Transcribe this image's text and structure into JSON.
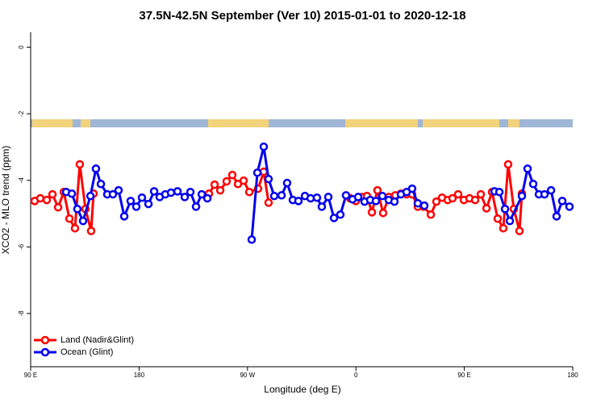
{
  "chart_data": {
    "type": "line",
    "title": "37.5N-42.5N September (Ver 10)   2015-01-01 to 2020-12-18",
    "x_label": "Longitude (deg E)",
    "y_label": "XCO2 - MLO trend (ppm)",
    "xlim": [
      90,
      540
    ],
    "ylim": [
      -9.6,
      0.45
    ],
    "xticks": [
      {
        "value": 90,
        "label": "90 E"
      },
      180,
      {
        "value": 270,
        "label": "90 W"
      },
      {
        "value": 360,
        "label": "0"
      },
      {
        "value": 450,
        "label": "90 E"
      },
      {
        "value": 540,
        "label": "180"
      }
    ],
    "yticks": [
      0,
      -2,
      -4,
      -6,
      -8
    ],
    "legend": "bottom-left",
    "series": [
      {
        "name": "Land (Nadir&Glint)",
        "color": "#ff0000",
        "x": [
          93.3,
          98.0,
          103.4,
          108.1,
          112.8,
          117.5,
          122.2,
          126.8,
          130.8,
          135.5,
          140.2,
          142.2,
          null,
          238.0,
          242.7,
          247.4,
          252.7,
          257.4,
          262.1,
          266.8,
          271.5,
          278.8,
          283.5,
          287.5,
          null,
          355.2,
          359.9,
          365.2,
          369.2,
          373.3,
          377.9,
          382.6,
          387.3,
          392.7,
          397.4,
          402.1,
          406.7,
          411.4,
          416.1,
          422.2,
          426.8,
          431.5,
          436.2,
          440.2,
          444.9,
          449.6,
          454.3,
          459.0,
          463.7,
          468.4,
          473.0,
          477.7,
          482.4,
          486.4,
          491.1,
          495.8,
          497.8
        ],
        "values": [
          -4.62,
          -4.54,
          -4.59,
          -4.42,
          -4.81,
          -4.35,
          -5.15,
          -5.44,
          -3.52,
          -4.86,
          -5.52,
          -4.4,
          null,
          -4.4,
          -4.13,
          -4.3,
          -4.03,
          -3.84,
          -4.11,
          -4.01,
          -4.35,
          -4.25,
          -3.74,
          -4.67,
          null,
          -4.54,
          -4.62,
          -4.5,
          -4.47,
          -4.96,
          -4.3,
          -4.98,
          -4.5,
          -4.45,
          -4.4,
          -4.42,
          -4.42,
          -4.79,
          -4.79,
          -5.03,
          -4.64,
          -4.52,
          -4.59,
          -4.54,
          -4.42,
          -4.59,
          -4.54,
          -4.59,
          -4.42,
          -4.84,
          -4.35,
          -5.15,
          -5.44,
          -3.52,
          -4.86,
          -5.52,
          -4.4
        ]
      },
      {
        "name": "Ocean (Glint)",
        "color": "#0000ee",
        "x": [
          119.5,
          124.2,
          128.8,
          133.5,
          139.6,
          144.2,
          148.3,
          153.6,
          158.3,
          163.0,
          167.7,
          173.0,
          177.7,
          182.4,
          187.8,
          192.5,
          197.1,
          201.8,
          206.5,
          211.9,
          217.9,
          222.6,
          227.3,
          232.0,
          236.7,
          null,
          273.5,
          278.2,
          283.5,
          287.5,
          292.2,
          298.3,
          302.9,
          307.6,
          312.3,
          317.7,
          322.4,
          327.7,
          331.7,
          337.1,
          341.8,
          347.1,
          351.8,
          357.2,
          361.9,
          367.2,
          371.9,
          376.6,
          382.0,
          387.3,
          392.0,
          397.4,
          402.1,
          406.7,
          411.4,
          416.8,
          null,
          475.1,
          479.1,
          483.8,
          487.8,
          497.8,
          502.5,
          507.2,
          511.9,
          516.6,
          522.0,
          526.6,
          531.3,
          537.3
        ],
        "values": [
          -4.35,
          -4.4,
          -4.86,
          -5.22,
          -4.47,
          -3.65,
          -4.11,
          -4.42,
          -4.42,
          -4.3,
          -5.08,
          -4.62,
          -4.79,
          -4.52,
          -4.71,
          -4.33,
          -4.5,
          -4.42,
          -4.37,
          -4.33,
          -4.5,
          -4.35,
          -4.79,
          -4.42,
          -4.54,
          null,
          -5.78,
          -3.77,
          -2.99,
          -3.96,
          -4.47,
          -4.45,
          -4.08,
          -4.59,
          -4.62,
          -4.47,
          -4.54,
          -4.52,
          -4.79,
          -4.5,
          -5.13,
          -5.03,
          -4.45,
          -4.57,
          -4.5,
          -4.64,
          -4.59,
          -4.62,
          -4.47,
          -4.59,
          -4.64,
          -4.42,
          -4.35,
          -4.25,
          -4.69,
          -4.76,
          null,
          -4.33,
          -4.35,
          -4.86,
          -5.22,
          -4.47,
          -3.65,
          -4.11,
          -4.42,
          -4.42,
          -4.3,
          -5.08,
          -4.62,
          -4.79
        ]
      }
    ]
  }
}
